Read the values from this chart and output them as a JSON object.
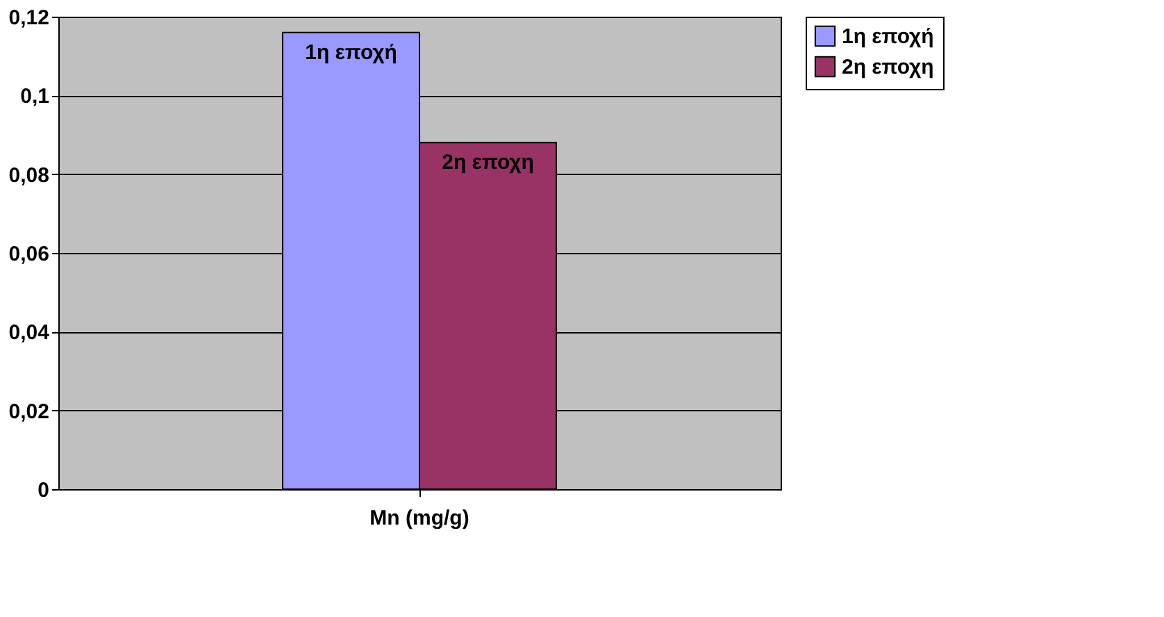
{
  "chart_data": {
    "type": "bar",
    "categories": [
      "Mn (mg/g)"
    ],
    "series": [
      {
        "name": "1η εποχή",
        "color": "#9999ff",
        "values": [
          0.116
        ]
      },
      {
        "name": "2η εποχη",
        "color": "#993366",
        "values": [
          0.088
        ]
      }
    ],
    "ylim": [
      0,
      0.12
    ],
    "yticks": [
      {
        "value": 0,
        "label": "0"
      },
      {
        "value": 0.02,
        "label": "0,02"
      },
      {
        "value": 0.04,
        "label": "0,04"
      },
      {
        "value": 0.06,
        "label": "0,06"
      },
      {
        "value": 0.08,
        "label": "0,08"
      },
      {
        "value": 0.1,
        "label": "0,1"
      },
      {
        "value": 0.12,
        "label": "0,12"
      }
    ],
    "annotations": [
      {
        "text": "1η εποχή",
        "x": "Mn (mg/g)",
        "y": 0.116
      },
      {
        "text": "2η εποχη",
        "x": "Mn (mg/g)",
        "y": 0.088
      }
    ],
    "grid": "y",
    "legend": "right"
  }
}
